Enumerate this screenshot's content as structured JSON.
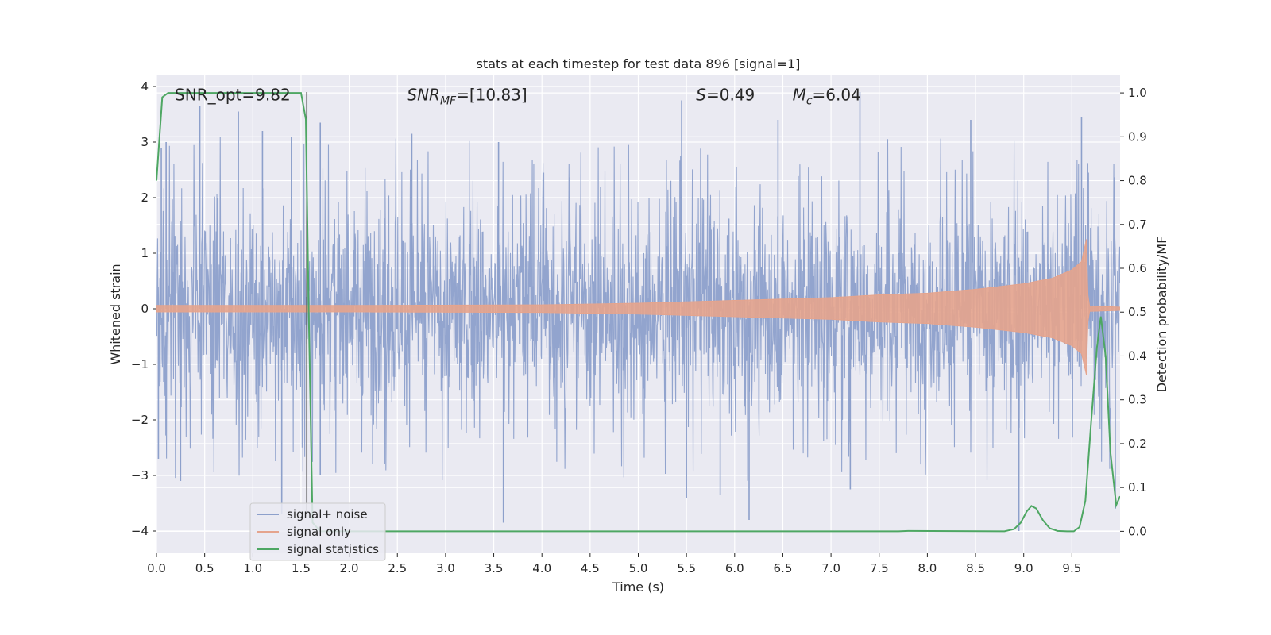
{
  "chart_data": {
    "type": "line",
    "title": "stats at each timestep for test data 896 [signal=1]",
    "xlabel": "Time (s)",
    "ylabel": "Whitened strain",
    "ylabel_right": "Detection probability/MF",
    "xlim": [
      0.0,
      10.0
    ],
    "ylim": [
      -4.4,
      4.2
    ],
    "ylim_right": [
      -0.05,
      1.04
    ],
    "x_ticks": [
      0.0,
      0.5,
      1.0,
      1.5,
      2.0,
      2.5,
      3.0,
      3.5,
      4.0,
      4.5,
      5.0,
      5.5,
      6.0,
      6.5,
      7.0,
      7.5,
      8.0,
      8.5,
      9.0,
      9.5
    ],
    "x_tick_labels": [
      "0.0",
      "0.5",
      "1.0",
      "1.5",
      "2.0",
      "2.5",
      "3.0",
      "3.5",
      "4.0",
      "4.5",
      "5.0",
      "5.5",
      "6.0",
      "6.5",
      "7.0",
      "7.5",
      "8.0",
      "8.5",
      "9.0",
      "9.5"
    ],
    "y_ticks": [
      -4,
      -3,
      -2,
      -1,
      0,
      1,
      2,
      3,
      4
    ],
    "y_tick_labels": [
      "−4",
      "−3",
      "−2",
      "−1",
      "0",
      "1",
      "2",
      "3",
      "4"
    ],
    "y_right_ticks": [
      0.0,
      0.1,
      0.2,
      0.3,
      0.4,
      0.5,
      0.6,
      0.7,
      0.8,
      0.9,
      1.0
    ],
    "y_right_tick_labels": [
      "0.0",
      "0.1",
      "0.2",
      "0.3",
      "0.4",
      "0.5",
      "0.6",
      "0.7",
      "0.8",
      "0.9",
      "1.0"
    ],
    "grid": true,
    "legend_position": "lower-left",
    "annotations": [
      {
        "label": "SNR_opt=9.82",
        "x": 0.19,
        "y": 3.85,
        "italic_prefix": false
      },
      {
        "label": "SNR",
        "sub": "MF",
        "rest": "=[10.83]",
        "x": 2.6,
        "y": 3.85,
        "italic_prefix": true
      },
      {
        "label": "S",
        "sub": "",
        "rest": "=0.49",
        "x": 5.6,
        "y": 3.85,
        "italic_prefix": true
      },
      {
        "label": "M",
        "sub": "c",
        "rest": "=6.04",
        "x": 6.6,
        "y": 3.85,
        "italic_prefix": true
      }
    ],
    "vertical_line_x": 1.56,
    "series": [
      {
        "name": "signal+ noise",
        "axis": "left",
        "color": "#8da0cb",
        "kind": "noise",
        "typical_range": [
          -2.0,
          2.0
        ],
        "peaks": [
          {
            "x": 0.05,
            "y": 2.9
          },
          {
            "x": 0.1,
            "y": 3.0
          },
          {
            "x": 0.45,
            "y": 3.65
          },
          {
            "x": 0.85,
            "y": 3.55
          },
          {
            "x": 1.1,
            "y": 3.2
          },
          {
            "x": 1.4,
            "y": 3.1
          },
          {
            "x": 1.7,
            "y": 3.35
          },
          {
            "x": 2.65,
            "y": 3.15
          },
          {
            "x": 3.55,
            "y": 3.0
          },
          {
            "x": 5.45,
            "y": 3.75
          },
          {
            "x": 6.45,
            "y": 3.4
          },
          {
            "x": 7.3,
            "y": 3.9
          },
          {
            "x": 8.45,
            "y": 3.4
          },
          {
            "x": 9.6,
            "y": 3.45
          },
          {
            "x": 0.02,
            "y": -2.7
          },
          {
            "x": 0.25,
            "y": -3.1
          },
          {
            "x": 1.3,
            "y": -3.7
          },
          {
            "x": 1.7,
            "y": -3.0
          },
          {
            "x": 3.6,
            "y": -3.85
          },
          {
            "x": 5.5,
            "y": -3.4
          },
          {
            "x": 5.85,
            "y": -3.35
          },
          {
            "x": 6.15,
            "y": -3.8
          },
          {
            "x": 7.2,
            "y": -3.25
          },
          {
            "x": 8.95,
            "y": -4.0
          },
          {
            "x": 9.95,
            "y": -3.6
          }
        ]
      },
      {
        "name": "signal only",
        "axis": "left",
        "color": "#e5a48d",
        "kind": "chirp",
        "envelope": [
          [
            0.0,
            0.06
          ],
          [
            2.0,
            0.06
          ],
          [
            4.0,
            0.07
          ],
          [
            5.0,
            0.1
          ],
          [
            6.0,
            0.15
          ],
          [
            7.0,
            0.2
          ],
          [
            7.5,
            0.25
          ],
          [
            8.0,
            0.28
          ],
          [
            8.5,
            0.35
          ],
          [
            9.0,
            0.45
          ],
          [
            9.3,
            0.55
          ],
          [
            9.5,
            0.7
          ],
          [
            9.6,
            0.85
          ],
          [
            9.65,
            1.25
          ],
          [
            9.67,
            0.05
          ],
          [
            10.0,
            0.03
          ]
        ]
      },
      {
        "name": "signal statistics",
        "axis": "right",
        "color": "#4ea763",
        "points": [
          [
            0.0,
            0.8
          ],
          [
            0.06,
            0.99
          ],
          [
            0.12,
            1.0
          ],
          [
            1.5,
            1.0
          ],
          [
            1.55,
            0.94
          ],
          [
            1.58,
            0.5
          ],
          [
            1.62,
            0.02
          ],
          [
            1.7,
            0.0
          ],
          [
            7.7,
            0.0
          ],
          [
            7.8,
            0.001
          ],
          [
            8.8,
            0.0
          ],
          [
            8.9,
            0.005
          ],
          [
            8.97,
            0.02
          ],
          [
            9.03,
            0.045
          ],
          [
            9.08,
            0.058
          ],
          [
            9.13,
            0.052
          ],
          [
            9.2,
            0.025
          ],
          [
            9.27,
            0.007
          ],
          [
            9.35,
            0.001
          ],
          [
            9.45,
            0.0
          ],
          [
            9.52,
            0.0
          ],
          [
            9.58,
            0.01
          ],
          [
            9.64,
            0.07
          ],
          [
            9.7,
            0.25
          ],
          [
            9.76,
            0.42
          ],
          [
            9.8,
            0.49
          ],
          [
            9.85,
            0.4
          ],
          [
            9.9,
            0.18
          ],
          [
            9.96,
            0.06
          ],
          [
            10.0,
            0.08
          ]
        ]
      }
    ]
  }
}
